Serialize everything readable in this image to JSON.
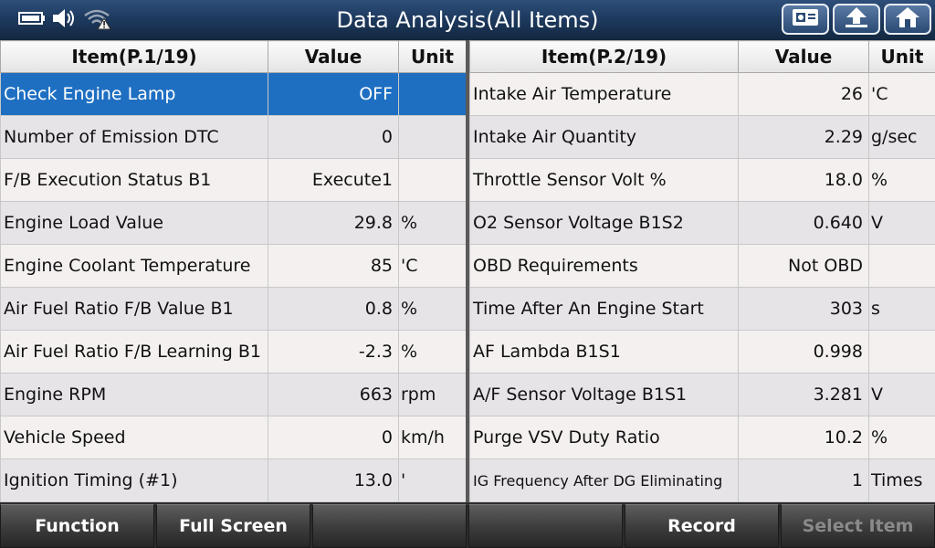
{
  "header": {
    "title": "Data Analysis(All Items)",
    "icons": [
      "battery-icon",
      "speaker-icon",
      "wifi-warning-icon"
    ],
    "buttons": [
      "print-icon",
      "up-arrow-icon",
      "home-icon"
    ]
  },
  "left_table": {
    "headers": {
      "item": "Item(P.1/19)",
      "value": "Value",
      "unit": "Unit"
    },
    "rows": [
      {
        "item": "Check Engine Lamp",
        "value": "OFF",
        "unit": ""
      },
      {
        "item": "Number of Emission DTC",
        "value": "0",
        "unit": ""
      },
      {
        "item": "F/B Execution Status B1",
        "value": "Execute1",
        "unit": ""
      },
      {
        "item": "Engine Load Value",
        "value": "29.8",
        "unit": "%"
      },
      {
        "item": "Engine Coolant Temperature",
        "value": "85",
        "unit": "'C"
      },
      {
        "item": "Air Fuel Ratio F/B Value B1",
        "value": "0.8",
        "unit": "%"
      },
      {
        "item": "Air Fuel Ratio F/B Learning B1",
        "value": "-2.3",
        "unit": "%"
      },
      {
        "item": "Engine RPM",
        "value": "663",
        "unit": "rpm"
      },
      {
        "item": "Vehicle Speed",
        "value": "0",
        "unit": "km/h"
      },
      {
        "item": "Ignition Timing (#1)",
        "value": "13.0",
        "unit": "'"
      }
    ]
  },
  "right_table": {
    "headers": {
      "item": "Item(P.2/19)",
      "value": "Value",
      "unit": "Unit"
    },
    "rows": [
      {
        "item": "Intake Air Temperature",
        "value": "26",
        "unit": "'C"
      },
      {
        "item": "Intake Air Quantity",
        "value": "2.29",
        "unit": "g/sec"
      },
      {
        "item": "Throttle Sensor Volt %",
        "value": "18.0",
        "unit": "%"
      },
      {
        "item": "O2 Sensor Voltage B1S2",
        "value": "0.640",
        "unit": "V"
      },
      {
        "item": "OBD Requirements",
        "value": "Not OBD",
        "unit": ""
      },
      {
        "item": "Time After An Engine Start",
        "value": "303",
        "unit": "s"
      },
      {
        "item": "AF Lambda B1S1",
        "value": "0.998",
        "unit": ""
      },
      {
        "item": "A/F Sensor Voltage B1S1",
        "value": "3.281",
        "unit": "V"
      },
      {
        "item": "Purge VSV Duty Ratio",
        "value": "10.2",
        "unit": "%"
      },
      {
        "item": "IG Frequency After DG Eliminating",
        "value": "1",
        "unit": "Times"
      }
    ]
  },
  "toolbar": {
    "function": "Function",
    "full_screen": "Full Screen",
    "empty_1": "",
    "empty_2": "",
    "record": "Record",
    "select_item": "Select Item"
  },
  "colors": {
    "header_bar": "#1e3a5f",
    "selected_row": "#1e6fc2",
    "disabled_text": "#8a8a8a"
  }
}
